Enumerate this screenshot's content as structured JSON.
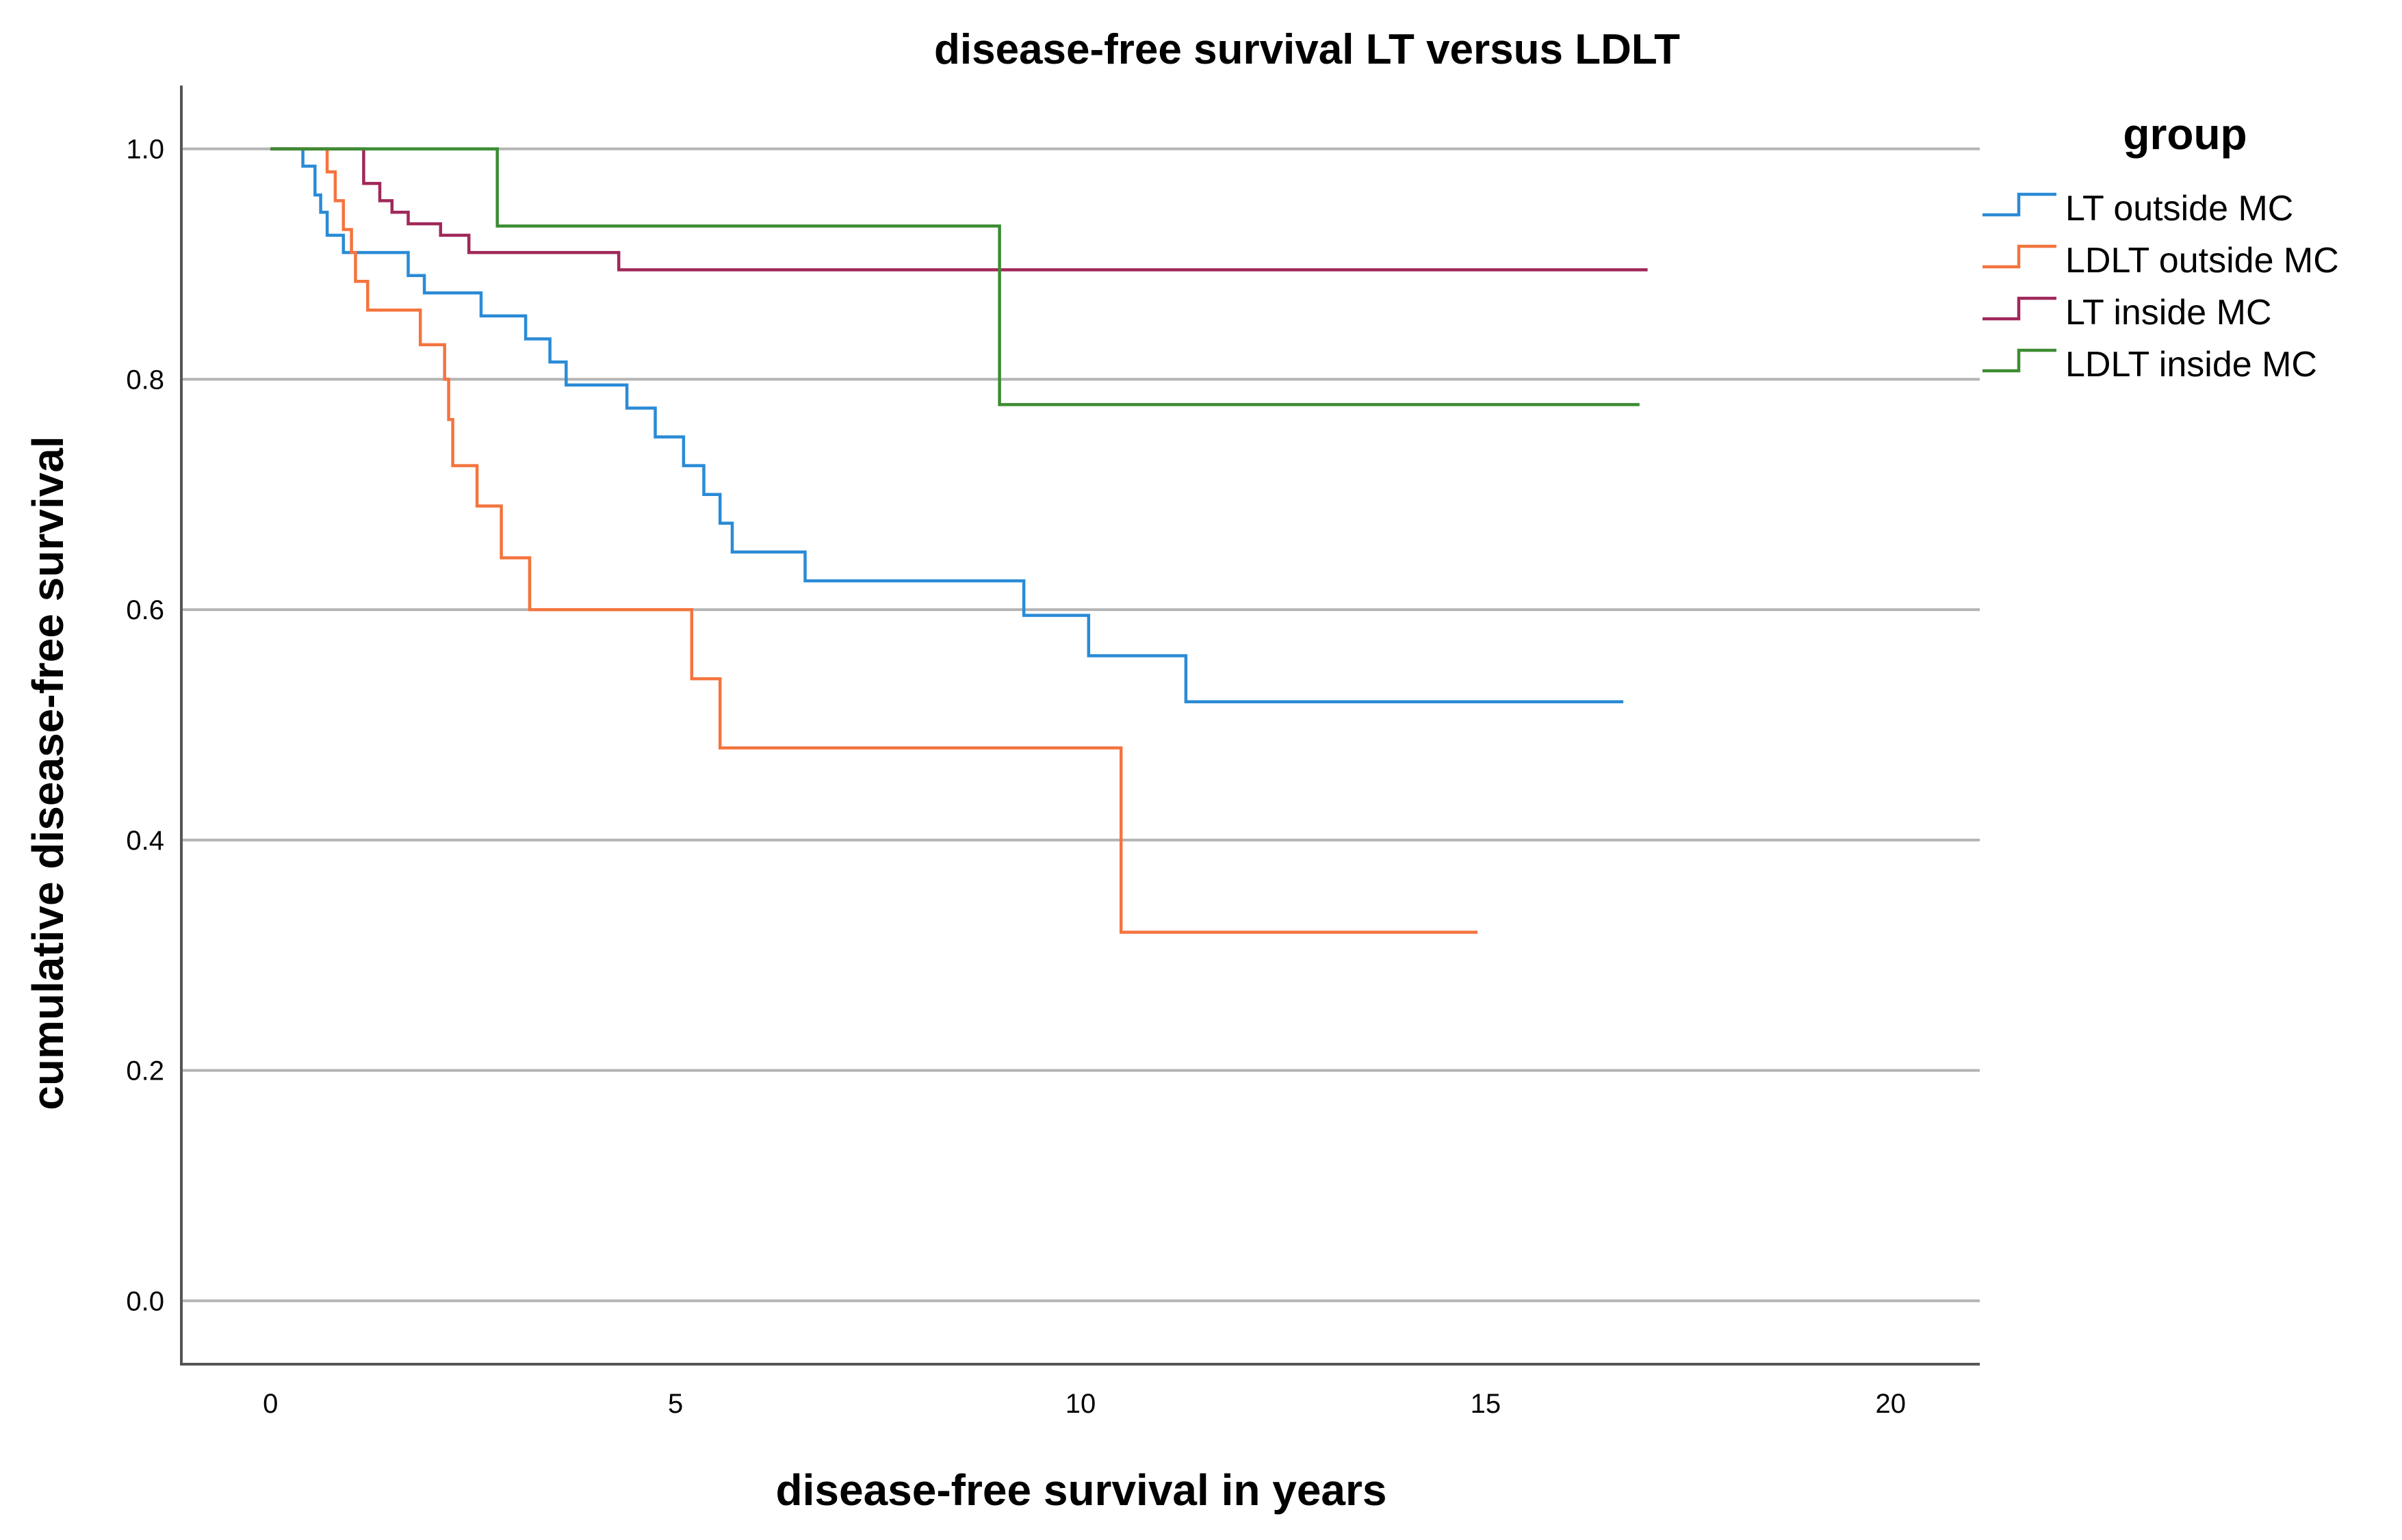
{
  "chart_data": {
    "type": "line",
    "subtype": "kaplan-meier-step",
    "title": "disease-free survival LT versus LDLT",
    "xlabel": "disease-free survival in years",
    "ylabel": "cumulative disease-free survival",
    "xlim": [
      -1.1,
      21.1
    ],
    "ylim": [
      -0.055,
      1.055
    ],
    "xticks": [
      0,
      5,
      10,
      15,
      20
    ],
    "xtick_labels": [
      "0",
      "5",
      "10",
      "15",
      "20"
    ],
    "yticks": [
      0.0,
      0.2,
      0.4,
      0.6,
      0.8,
      1.0
    ],
    "ytick_labels": [
      "0.0",
      "0.2",
      "0.4",
      "0.6",
      "0.8",
      "1.0"
    ],
    "grid": "horizontal",
    "legend": {
      "title": "group",
      "position": "right",
      "entries": [
        "LT outside MC",
        "LDLT outside MC",
        "LT inside MC",
        "LDLT inside MC"
      ]
    },
    "series": [
      {
        "name": "LT outside MC",
        "color": "#2a8bd6",
        "points": [
          [
            0,
            1.0
          ],
          [
            0.4,
            0.985
          ],
          [
            0.55,
            0.96
          ],
          [
            0.62,
            0.945
          ],
          [
            0.7,
            0.925
          ],
          [
            0.9,
            0.91
          ],
          [
            1.7,
            0.89
          ],
          [
            1.9,
            0.875
          ],
          [
            2.6,
            0.855
          ],
          [
            3.15,
            0.835
          ],
          [
            3.45,
            0.815
          ],
          [
            3.65,
            0.795
          ],
          [
            4.4,
            0.775
          ],
          [
            4.75,
            0.75
          ],
          [
            5.1,
            0.725
          ],
          [
            5.35,
            0.7
          ],
          [
            5.55,
            0.675
          ],
          [
            5.7,
            0.65
          ],
          [
            6.6,
            0.625
          ],
          [
            9.3,
            0.595
          ],
          [
            10.1,
            0.56
          ],
          [
            11.3,
            0.52
          ],
          [
            16.7,
            0.52
          ]
        ]
      },
      {
        "name": "LDLT outside MC",
        "color": "#f4743e",
        "points": [
          [
            0,
            1.0
          ],
          [
            0.7,
            0.98
          ],
          [
            0.8,
            0.955
          ],
          [
            0.9,
            0.93
          ],
          [
            1.0,
            0.91
          ],
          [
            1.05,
            0.885
          ],
          [
            1.2,
            0.86
          ],
          [
            1.85,
            0.83
          ],
          [
            2.15,
            0.8
          ],
          [
            2.2,
            0.765
          ],
          [
            2.25,
            0.725
          ],
          [
            2.55,
            0.69
          ],
          [
            2.85,
            0.645
          ],
          [
            3.2,
            0.6
          ],
          [
            5.2,
            0.54
          ],
          [
            5.55,
            0.48
          ],
          [
            10.5,
            0.32
          ],
          [
            14.9,
            0.32
          ]
        ]
      },
      {
        "name": "LT inside MC",
        "color": "#a0285a",
        "points": [
          [
            0,
            1.0
          ],
          [
            1.15,
            0.97
          ],
          [
            1.35,
            0.955
          ],
          [
            1.5,
            0.945
          ],
          [
            1.7,
            0.935
          ],
          [
            2.1,
            0.925
          ],
          [
            2.45,
            0.91
          ],
          [
            4.3,
            0.895
          ],
          [
            17.0,
            0.895
          ]
        ]
      },
      {
        "name": "LDLT inside MC",
        "color": "#3c8c32",
        "points": [
          [
            0,
            1.0
          ],
          [
            2.8,
            0.933
          ],
          [
            9.0,
            0.778
          ],
          [
            16.9,
            0.778
          ]
        ]
      }
    ]
  }
}
